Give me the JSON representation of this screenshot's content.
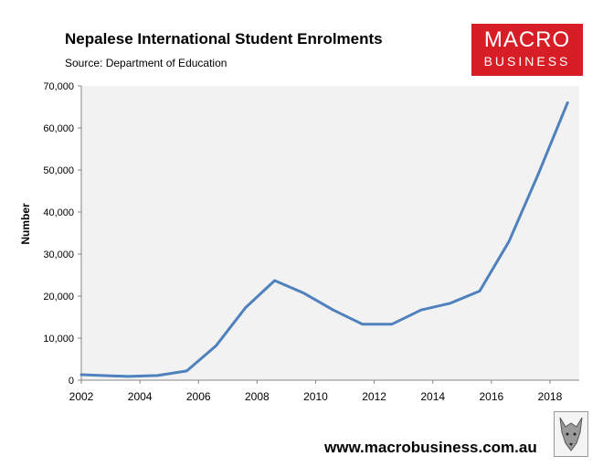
{
  "header": {
    "title": "Nepalese International Student Enrolments",
    "source": "Source: Department of Education"
  },
  "logo": {
    "line1": "MACRO",
    "line2": "BUSINESS",
    "color": "#d71e26"
  },
  "footer": {
    "url": "www.macrobusiness.com.au"
  },
  "chart_data": {
    "type": "line",
    "title": "Nepalese International Student Enrolments",
    "subtitle": "Source: Department of Education",
    "xlabel": "",
    "ylabel": "Number",
    "xlim": [
      2002,
      2019
    ],
    "ylim": [
      0,
      70000
    ],
    "x_ticks": [
      2002,
      2004,
      2006,
      2008,
      2010,
      2012,
      2014,
      2016,
      2018
    ],
    "y_ticks": [
      0,
      10000,
      20000,
      30000,
      40000,
      50000,
      60000,
      70000
    ],
    "y_tick_labels": [
      "0",
      "10,000",
      "20,000",
      "30,000",
      "40,000",
      "50,000",
      "60,000",
      "70,000"
    ],
    "grid": false,
    "plot_background": "#f2f2f2",
    "series": [
      {
        "color": "#4f81bd",
        "x": [
          2002,
          2003.6,
          2004.6,
          2005.6,
          2006.6,
          2007.6,
          2008.6,
          2009.6,
          2010.6,
          2011.6,
          2012.6,
          2013.6,
          2014.6,
          2015.6,
          2016.6,
          2017.6,
          2018.6
        ],
        "y": [
          1300,
          900,
          1100,
          2200,
          8200,
          17200,
          23700,
          20700,
          16700,
          13300,
          13300,
          16700,
          18300,
          21200,
          33000,
          49000,
          66000
        ]
      }
    ]
  }
}
